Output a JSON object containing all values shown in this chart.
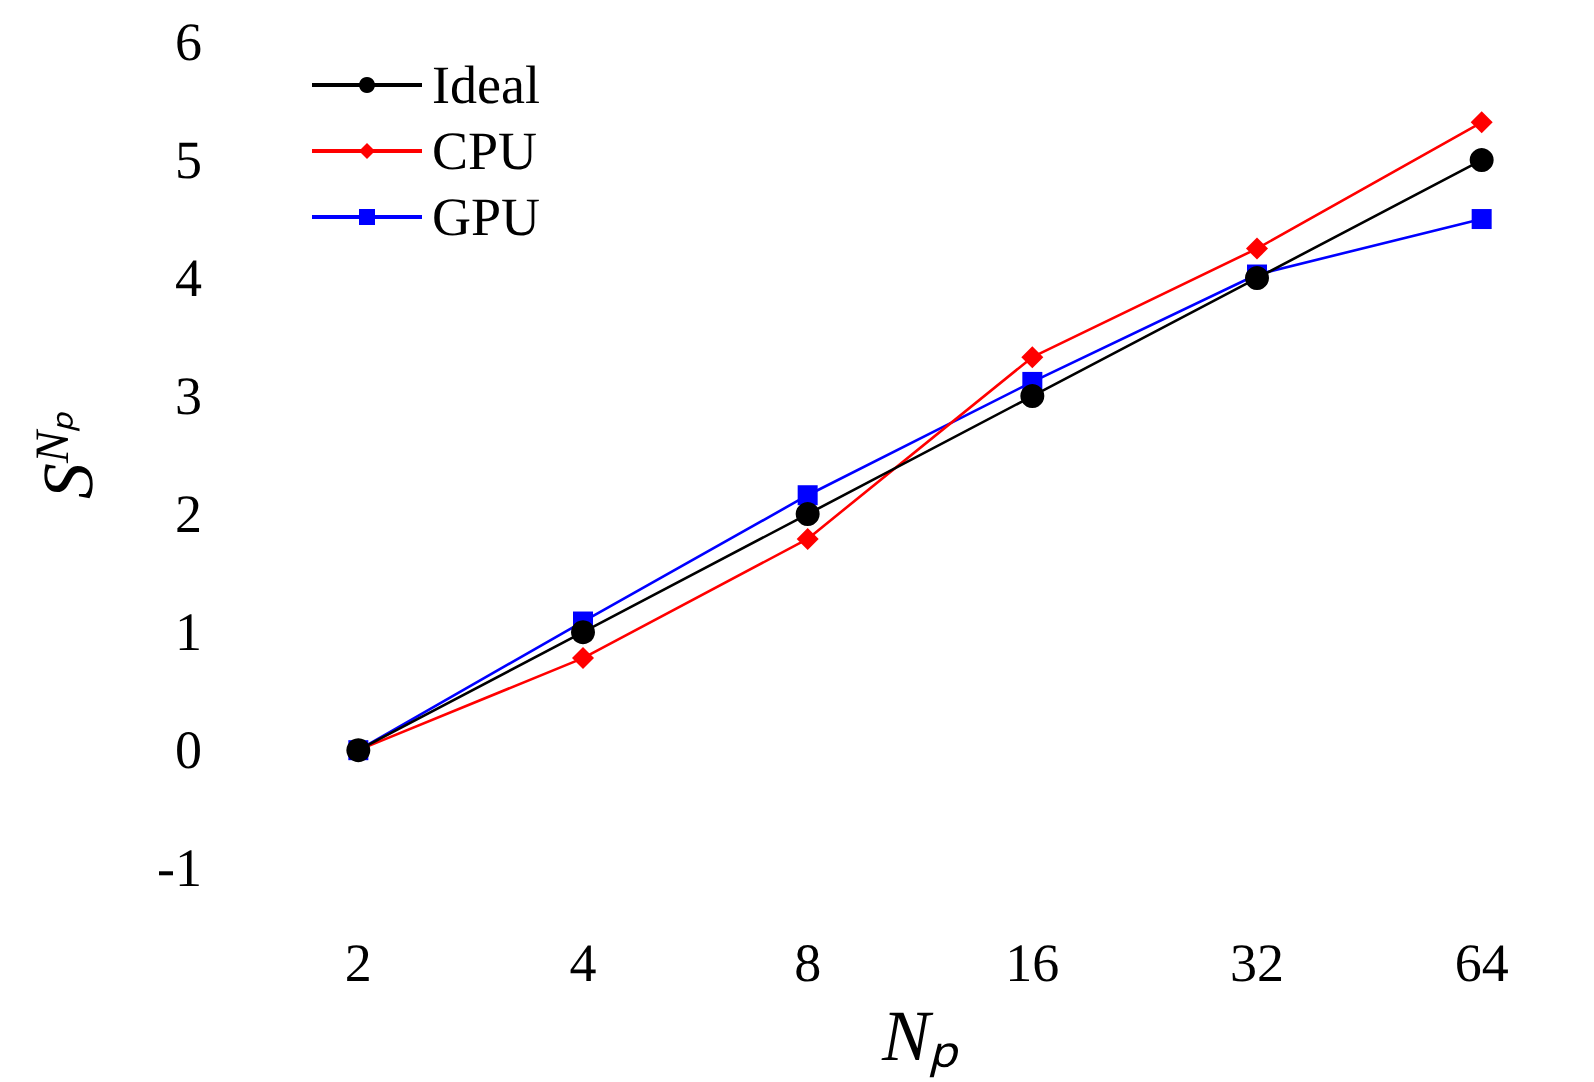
{
  "chart_data": {
    "type": "line",
    "xlabel": "Nₚ",
    "ylabel": "S$^{Nₚ}$",
    "categories": [
      "2",
      "4",
      "8",
      "16",
      "32",
      "64"
    ],
    "series": [
      {
        "name": "Ideal",
        "color": "#000000",
        "marker": "circle",
        "values": [
          0,
          1,
          2,
          3,
          4,
          5
        ]
      },
      {
        "name": "CPU",
        "color": "#ff0000",
        "marker": "diamond",
        "values": [
          0,
          0.78,
          1.79,
          3.33,
          4.25,
          5.32
        ]
      },
      {
        "name": "GPU",
        "color": "#0000ff",
        "marker": "square",
        "values": [
          0,
          1.09,
          2.16,
          3.12,
          4.03,
          4.5
        ]
      }
    ],
    "ylim": [
      -1,
      6
    ],
    "yticks": [
      -1,
      0,
      1,
      2,
      3,
      4,
      5,
      6
    ],
    "grid": false,
    "legend": "top left",
    "line_style": "solid"
  }
}
